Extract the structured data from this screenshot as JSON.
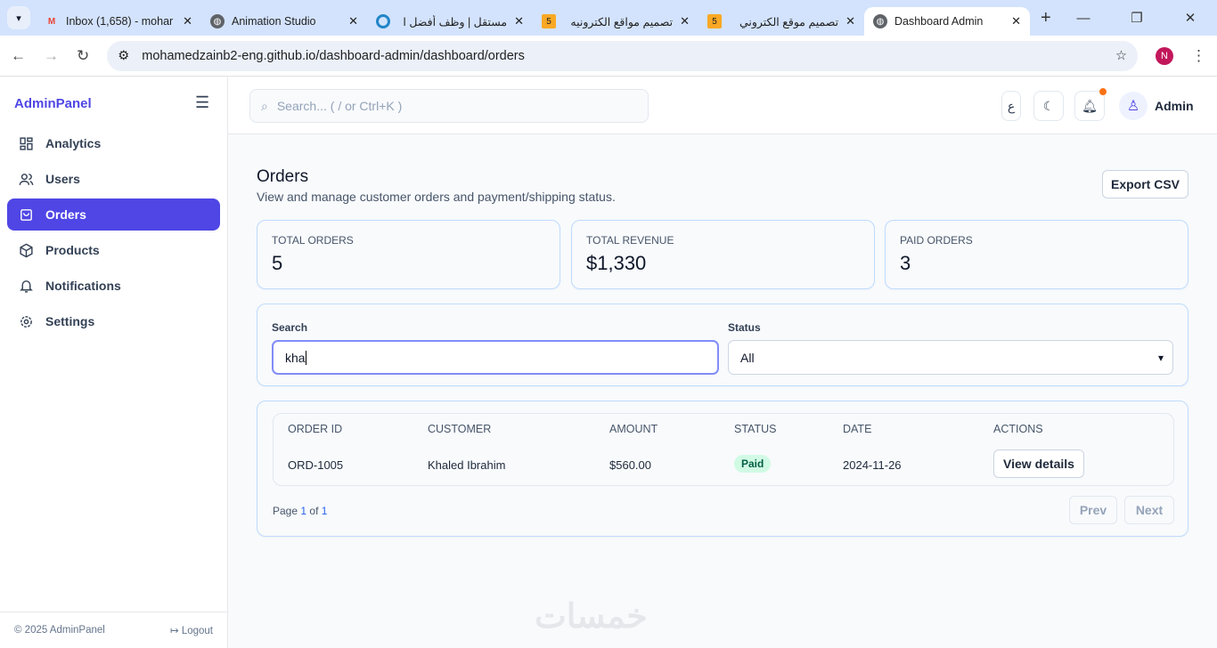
{
  "browser": {
    "tabs": [
      {
        "title": "Inbox (1,658) - mohar",
        "icon": "gmail-icon"
      },
      {
        "title": "Animation Studio",
        "icon": "globe-icon"
      },
      {
        "title": "مستقل | وظف أفضل ا",
        "icon": "mostaql-icon"
      },
      {
        "title": "تصميم مواقع الكترونيه",
        "icon": "khamsat-icon"
      },
      {
        "title": "تصميم موقع الكتروني",
        "icon": "khamsat-icon"
      },
      {
        "title": "Dashboard Admin",
        "icon": "globe-icon",
        "active": true
      }
    ],
    "url": "mohamedzainb2-eng.github.io/dashboard-admin/dashboard/orders",
    "profile_initial": "N"
  },
  "sidebar": {
    "brand": "AdminPanel",
    "items": [
      {
        "label": "Analytics",
        "icon": "grid-icon"
      },
      {
        "label": "Users",
        "icon": "users-icon"
      },
      {
        "label": "Orders",
        "icon": "bag-icon",
        "active": true
      },
      {
        "label": "Products",
        "icon": "box-icon"
      },
      {
        "label": "Notifications",
        "icon": "bell-icon"
      },
      {
        "label": "Settings",
        "icon": "gear-icon"
      }
    ],
    "copyright": "© 2025 AdminPanel",
    "logout": "Logout"
  },
  "topbar": {
    "search_placeholder": "Search... ( / or Ctrl+K )",
    "lang": "ع",
    "user": "Admin"
  },
  "page": {
    "title": "Orders",
    "subtitle": "View and manage customer orders and payment/shipping status.",
    "export": "Export CSV",
    "stats": [
      {
        "label": "TOTAL ORDERS",
        "value": "5"
      },
      {
        "label": "TOTAL REVENUE",
        "value": "$1,330"
      },
      {
        "label": "PAID ORDERS",
        "value": "3"
      }
    ],
    "filters": {
      "search_label": "Search",
      "search_value": "kha",
      "status_label": "Status",
      "status_value": "All"
    },
    "table": {
      "headers": [
        "ORDER ID",
        "CUSTOMER",
        "AMOUNT",
        "STATUS",
        "DATE",
        "ACTIONS"
      ],
      "rows": [
        {
          "id": "ORD-1005",
          "customer": "Khaled Ibrahim",
          "amount": "$560.00",
          "status": "Paid",
          "date": "2024-11-26",
          "action": "View details"
        }
      ]
    },
    "pagination": {
      "page_word": "Page",
      "current": "1",
      "of": "of",
      "total": "1",
      "prev": "Prev",
      "next": "Next"
    }
  },
  "colors": {
    "accent": "#4f46e5",
    "paid_bg": "#d1fae5",
    "notification_dot": "#f97316"
  },
  "watermark": "خمسات"
}
